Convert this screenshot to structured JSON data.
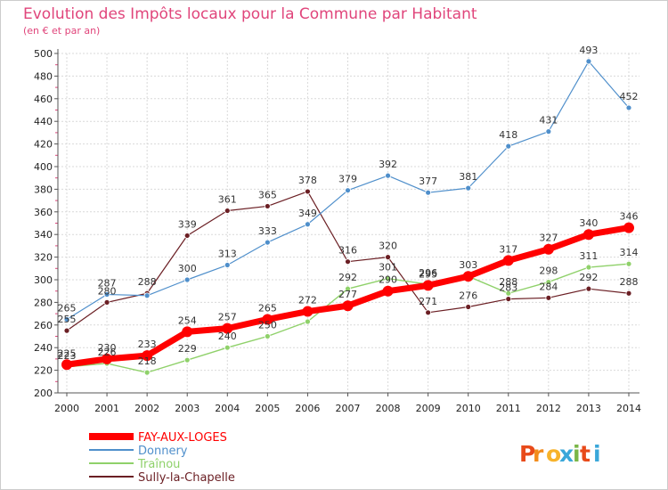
{
  "chart_data": {
    "type": "line",
    "title": "Evolution des Impôts locaux pour la Commune par Habitant",
    "subtitle": "(en € et par an)",
    "x": [
      "2000",
      "2001",
      "2002",
      "2003",
      "2004",
      "2005",
      "2006",
      "2007",
      "2008",
      "2009",
      "2010",
      "2011",
      "2012",
      "2013",
      "2014"
    ],
    "ylim": [
      200,
      500
    ],
    "yticks": [
      200,
      220,
      240,
      260,
      280,
      300,
      320,
      340,
      360,
      380,
      400,
      420,
      440,
      460,
      480,
      500
    ],
    "grid": true,
    "series": [
      {
        "name": "FAY-AUX-LOGES",
        "color": "#ff0000",
        "values": [
          225,
          230,
          233,
          254,
          257,
          265,
          272,
          277,
          290,
          295,
          303,
          317,
          327,
          340,
          346
        ]
      },
      {
        "name": "Donnery",
        "color": "#4f8fcb",
        "values": [
          265,
          287,
          286,
          300,
          313,
          333,
          349,
          379,
          392,
          377,
          381,
          418,
          431,
          493,
          452
        ]
      },
      {
        "name": "Traînou",
        "color": "#8fd16a",
        "values": [
          223,
          226,
          218,
          229,
          240,
          250,
          263,
          292,
          301,
          296,
          303,
          288,
          298,
          311,
          314
        ]
      },
      {
        "name": "Sully-la-Chapelle",
        "color": "#6b1f24",
        "values": [
          255,
          280,
          288,
          339,
          361,
          365,
          378,
          316,
          320,
          271,
          276,
          283,
          284,
          292,
          288
        ]
      }
    ],
    "data_labels": [
      {
        "series": 0,
        "labels": [
          "225",
          "230",
          "233",
          "254",
          "257",
          "265",
          "272",
          "277",
          "290",
          "295",
          "303",
          "317",
          "327",
          "340",
          "346"
        ]
      },
      {
        "series": 1,
        "labels": [
          "265",
          "287",
          "",
          "300",
          "313",
          "333",
          "349",
          "379",
          "392",
          "377",
          "381",
          "418",
          "431",
          "493",
          "452"
        ]
      },
      {
        "series": 2,
        "labels": [
          "223",
          "226",
          "218",
          "229",
          "240",
          "250",
          "",
          "292",
          "301",
          "296",
          "",
          "288",
          "298",
          "311",
          "314"
        ]
      },
      {
        "series": 3,
        "labels": [
          "255",
          "280",
          "288",
          "339",
          "361",
          "365",
          "378",
          "316",
          "320",
          "271",
          "276",
          "283",
          "284",
          "292",
          "288"
        ]
      }
    ]
  },
  "brand": {
    "text": "Proxiti"
  }
}
